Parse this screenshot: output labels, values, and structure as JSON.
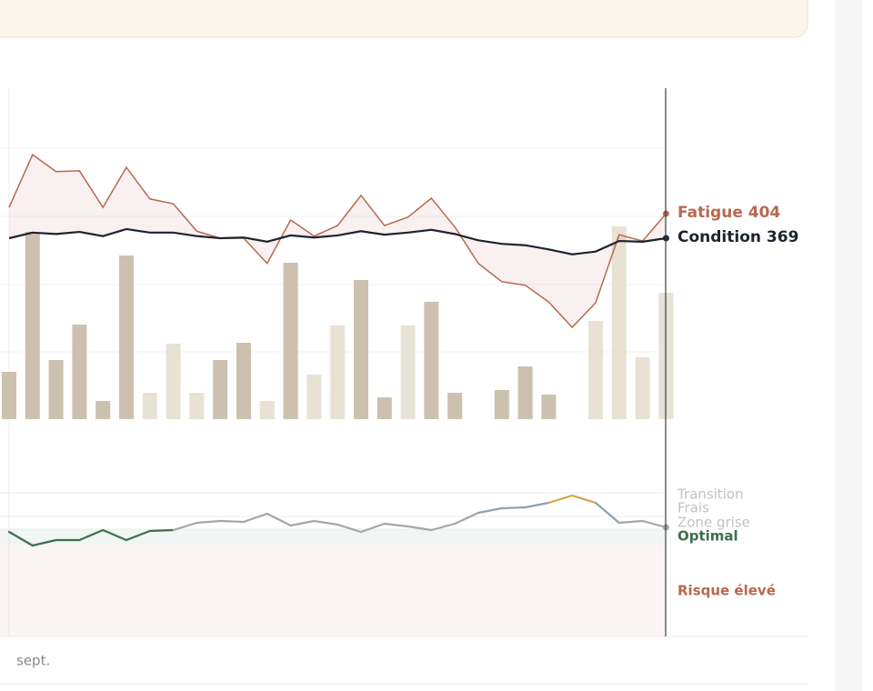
{
  "chart_data": [
    {
      "type": "line-bar",
      "series": [
        {
          "name": "Fatigue",
          "color": "#b8684f",
          "values": [
            413,
            488,
            464,
            465,
            413,
            470,
            425,
            418,
            379,
            369,
            369,
            333,
            395,
            372,
            387,
            430,
            387,
            399,
            426,
            385,
            333,
            307,
            302,
            278,
            242,
            277,
            374,
            365,
            404
          ]
        },
        {
          "name": "Condition",
          "color": "#1d2430",
          "values": [
            369,
            377,
            375,
            378,
            372,
            382,
            377,
            377,
            372,
            369,
            370,
            364,
            373,
            370,
            373,
            379,
            374,
            377,
            381,
            375,
            366,
            361,
            359,
            353,
            346,
            350,
            365,
            364,
            369
          ]
        }
      ],
      "bars": [
        52,
        206,
        65,
        104,
        20,
        180,
        29,
        83,
        29,
        65,
        84,
        20,
        172,
        49,
        103,
        153,
        24,
        103,
        129,
        29,
        0,
        32,
        58,
        27,
        0,
        108,
        212,
        68,
        139
      ],
      "bar_colors": [
        "#cbc1ae",
        "#cbc1ae",
        "#cbc1ae",
        "#cbc1ae",
        "#cbc1ae",
        "#cbc1ae",
        "#e7e2d4",
        "#e7e2d4",
        "#e7e2d4",
        "#cbc1ae",
        "#cbc1ae",
        "#e7e2d4",
        "#cbc1ae",
        "#e7e2d4",
        "#e7e2d4",
        "#cbc1ae",
        "#cbc1ae",
        "#e7e2d4",
        "#cbc1ae",
        "#cbc1ae",
        "#cbc1ae",
        "#cbc1ae",
        "#cbc1ae",
        "#cbc1ae",
        "#cbc1ae",
        "#e7e2d4",
        "#e7e2d4",
        "#e7e2d4",
        "#e7e2d4"
      ],
      "grid": true
    },
    {
      "type": "zone-line",
      "values": [
        14,
        -1,
        5,
        5,
        16,
        5,
        15,
        16,
        24,
        26,
        25,
        34,
        21,
        26,
        22,
        14,
        23,
        20,
        16,
        23,
        35,
        40,
        41,
        46,
        54,
        46,
        24,
        26,
        19
      ],
      "zones": [
        {
          "name": "Transition",
          "min": 49,
          "color": "#d4a54a"
        },
        {
          "name": "Frais",
          "min": 31,
          "color": "#8aa3b4"
        },
        {
          "name": "Zone grise",
          "min": 17,
          "color": "#a6a6a3"
        },
        {
          "name": "Optimal",
          "min": 0,
          "color": "#3e6e4f"
        },
        {
          "name": "Risque élevé",
          "min": -100,
          "color": "#b8684f"
        }
      ],
      "x_label": "sept."
    }
  ]
}
